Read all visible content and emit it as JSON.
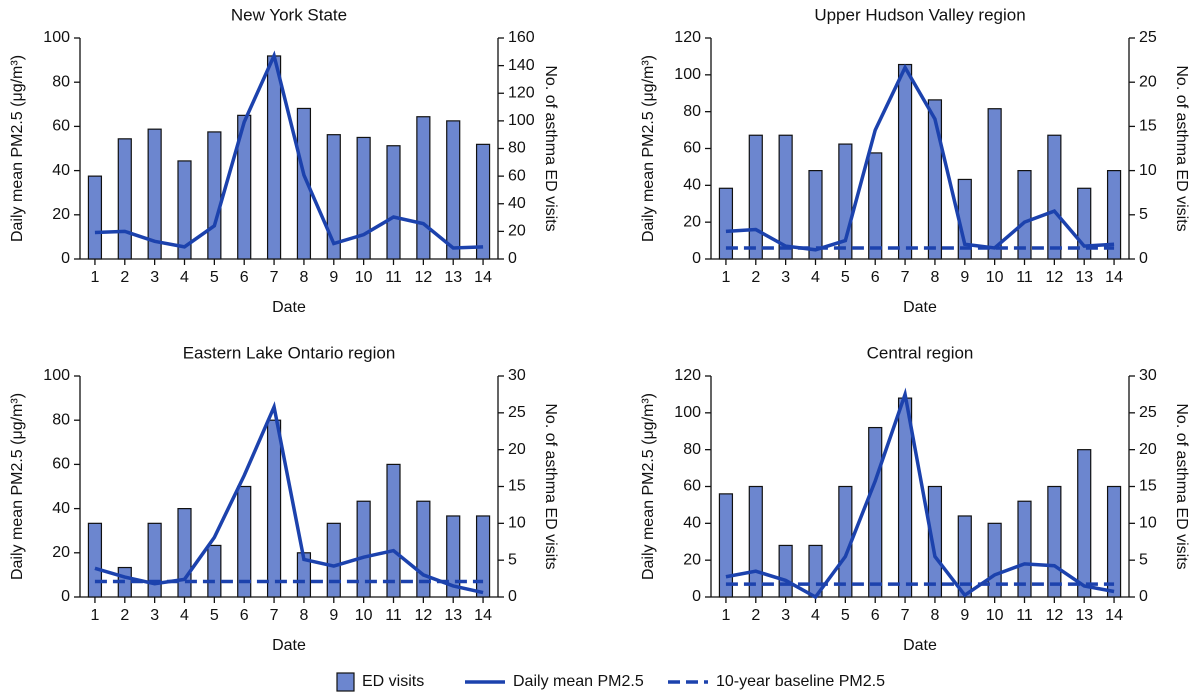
{
  "chart_data": [
    {
      "type": "bar_line",
      "title": "New York State",
      "xlabel": "Date",
      "ylabel": "Daily mean PM2.5 (μg/m³)",
      "y2label": "No. of asthma ED visits",
      "categories": [
        "1",
        "2",
        "3",
        "4",
        "5",
        "6",
        "7",
        "8",
        "9",
        "10",
        "11",
        "12",
        "13",
        "14"
      ],
      "ylim": [
        0,
        100
      ],
      "yticks": [
        0,
        20,
        40,
        60,
        80,
        100
      ],
      "y2lim": [
        0,
        160
      ],
      "y2ticks": [
        0,
        20,
        40,
        60,
        80,
        100,
        120,
        140,
        160
      ],
      "series": [
        {
          "style": "bar",
          "axis": "y2",
          "color": "#6c86cf",
          "values": [
            60,
            87,
            94,
            71,
            92,
            104,
            147,
            109,
            90,
            88,
            82,
            103,
            100,
            83
          ]
        },
        {
          "style": "line",
          "axis": "y",
          "color": "#1c42ad",
          "values": [
            12,
            12.5,
            8,
            5.5,
            15,
            62,
            92,
            38,
            7,
            11,
            19,
            16,
            5,
            5.5
          ]
        }
      ]
    },
    {
      "type": "bar_line",
      "title": "Upper Hudson Valley region",
      "xlabel": "Date",
      "ylabel": "Daily mean PM2.5 (μg/m³)",
      "y2label": "No. of asthma ED visits",
      "categories": [
        "1",
        "2",
        "3",
        "4",
        "5",
        "6",
        "7",
        "8",
        "9",
        "10",
        "11",
        "12",
        "13",
        "14"
      ],
      "ylim": [
        0,
        120
      ],
      "yticks": [
        0,
        20,
        40,
        60,
        80,
        100,
        120
      ],
      "y2lim": [
        0,
        25
      ],
      "y2ticks": [
        0,
        5,
        10,
        15,
        20,
        25
      ],
      "series": [
        {
          "style": "bar",
          "axis": "y2",
          "color": "#6c86cf",
          "values": [
            8,
            14,
            14,
            10,
            13,
            12,
            22,
            18,
            9,
            17,
            10,
            14,
            8,
            10
          ]
        },
        {
          "style": "line",
          "axis": "y",
          "color": "#1c42ad",
          "values": [
            15,
            16,
            7,
            5,
            10,
            70,
            104,
            76,
            8,
            6,
            20,
            26,
            7,
            8
          ]
        },
        {
          "style": "dashed",
          "axis": "y",
          "color": "#1c42ad",
          "values": [
            6,
            6,
            6,
            6,
            6,
            6,
            6,
            6,
            6,
            6,
            6,
            6,
            6,
            6
          ]
        }
      ]
    },
    {
      "type": "bar_line",
      "title": "Eastern Lake Ontario region",
      "xlabel": "Date",
      "ylabel": "Daily mean PM2.5 (μg/m³)",
      "y2label": "No. of asthma ED visits",
      "categories": [
        "1",
        "2",
        "3",
        "4",
        "5",
        "6",
        "7",
        "8",
        "9",
        "10",
        "11",
        "12",
        "13",
        "14"
      ],
      "ylim": [
        0,
        100
      ],
      "yticks": [
        0,
        20,
        40,
        60,
        80,
        100
      ],
      "y2lim": [
        0,
        30
      ],
      "y2ticks": [
        0,
        5,
        10,
        15,
        20,
        25,
        30
      ],
      "series": [
        {
          "style": "bar",
          "axis": "y2",
          "color": "#6c86cf",
          "values": [
            10,
            4,
            10,
            12,
            7,
            15,
            24,
            6,
            10,
            13,
            18,
            13,
            11,
            11
          ]
        },
        {
          "style": "line",
          "axis": "y",
          "color": "#1c42ad",
          "values": [
            13,
            9,
            6,
            8,
            27,
            55,
            86,
            17,
            14,
            18,
            21,
            10,
            5,
            2
          ]
        },
        {
          "style": "dashed",
          "axis": "y",
          "color": "#1c42ad",
          "values": [
            7,
            7,
            7,
            7,
            7,
            7,
            7,
            7,
            7,
            7,
            7,
            7,
            7,
            7
          ]
        }
      ]
    },
    {
      "type": "bar_line",
      "title": "Central region",
      "xlabel": "Date",
      "ylabel": "Daily mean PM2.5 (μg/m³)",
      "y2label": "No. of asthma ED visits",
      "categories": [
        "1",
        "2",
        "3",
        "4",
        "5",
        "6",
        "7",
        "8",
        "9",
        "10",
        "11",
        "12",
        "13",
        "14"
      ],
      "ylim": [
        0,
        120
      ],
      "yticks": [
        0,
        20,
        40,
        60,
        80,
        100,
        120
      ],
      "y2lim": [
        0,
        30
      ],
      "y2ticks": [
        0,
        5,
        10,
        15,
        20,
        25,
        30
      ],
      "series": [
        {
          "style": "bar",
          "axis": "y2",
          "color": "#6c86cf",
          "values": [
            14,
            15,
            7,
            7,
            15,
            23,
            27,
            15,
            11,
            10,
            13,
            15,
            20,
            15
          ]
        },
        {
          "style": "line",
          "axis": "y",
          "color": "#1c42ad",
          "values": [
            11,
            14,
            9,
            0,
            22,
            63,
            110,
            22,
            1,
            12,
            18,
            17,
            6,
            3
          ]
        },
        {
          "style": "dashed",
          "axis": "y",
          "color": "#1c42ad",
          "values": [
            7,
            7,
            7,
            7,
            7,
            7,
            7,
            7,
            7,
            7,
            7,
            7,
            7,
            7
          ]
        }
      ]
    }
  ],
  "legend": [
    {
      "name": "ED visits",
      "style": "bar",
      "color": "#6c86cf"
    },
    {
      "name": "Daily mean PM2.5",
      "style": "line",
      "color": "#1c42ad"
    },
    {
      "name": "10-year baseline PM2.5",
      "style": "dashed",
      "color": "#1c42ad"
    }
  ]
}
